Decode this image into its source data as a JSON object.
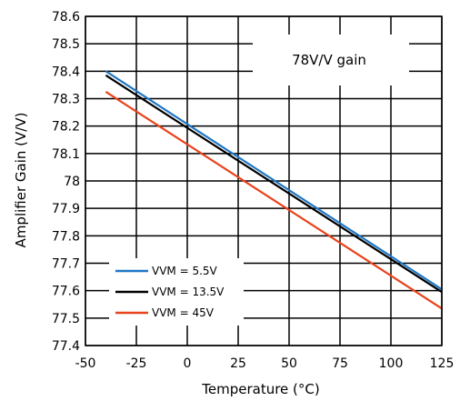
{
  "chart_data": {
    "type": "line",
    "annotation": "78V/V gain",
    "xlabel": "Temperature (°C)",
    "ylabel": "Amplifier Gain (V/V)",
    "xlim": [
      -50,
      125
    ],
    "ylim": [
      77.4,
      78.6
    ],
    "x_ticks": [
      "-50",
      "-25",
      "0",
      "25",
      "50",
      "75",
      "100",
      "125"
    ],
    "y_ticks": [
      "77.4",
      "77.5",
      "77.6",
      "77.7",
      "77.8",
      "77.9",
      "78",
      "78.1",
      "78.2",
      "78.3",
      "78.4",
      "78.5",
      "78.6"
    ],
    "grid": true,
    "legend_position": "bottom-left",
    "series": [
      {
        "name": "VVM = 5.5V",
        "color": "#1f77c4",
        "x": [
          -40,
          125
        ],
        "y": [
          78.4,
          77.605
        ]
      },
      {
        "name": "VVM = 13.5V",
        "color": "#000000",
        "x": [
          -40,
          125
        ],
        "y": [
          78.385,
          77.595
        ]
      },
      {
        "name": "VVM = 45V",
        "color": "#e8431c",
        "x": [
          -40,
          125
        ],
        "y": [
          78.325,
          77.535
        ]
      }
    ]
  }
}
